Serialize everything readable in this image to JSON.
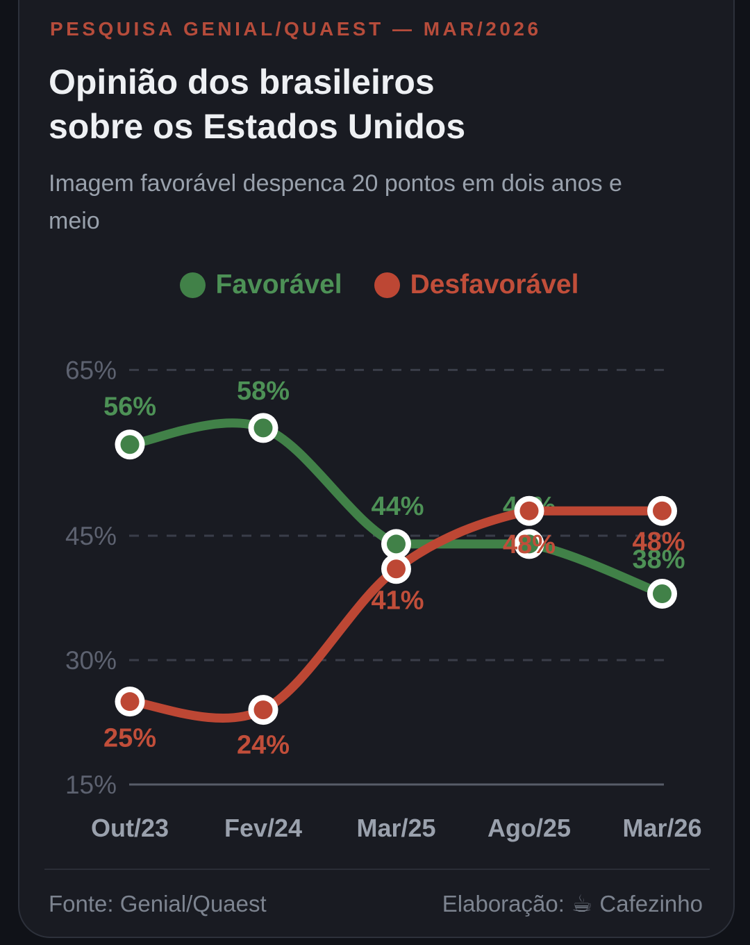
{
  "header": {
    "kicker": "PESQUISA GENIAL/QUAEST — MAR/2026",
    "title": "Opinião dos brasileiros\nsobre os Estados Unidos",
    "subtitle": "Imagem favorável despenca 20 pontos em dois anos e meio"
  },
  "legend": {
    "items": [
      {
        "label": "Favorável",
        "color": "#418148",
        "text_color": "#4d9156"
      },
      {
        "label": "Desfavorável",
        "color": "#bd4734",
        "text_color": "#c14e3a"
      }
    ]
  },
  "chart_data": {
    "type": "line",
    "categories": [
      "Out/23",
      "Fev/24",
      "Mar/25",
      "Ago/25",
      "Mar/26"
    ],
    "series": [
      {
        "name": "Favorável",
        "values": [
          56,
          58,
          44,
          44,
          38
        ],
        "color_line": "#418148",
        "color_label": "#4d9156",
        "label_position": "above"
      },
      {
        "name": "Desfavorável",
        "values": [
          25,
          24,
          41,
          48,
          48
        ],
        "color_line": "#bd4734",
        "color_label": "#c14e3a",
        "label_position": "below"
      }
    ],
    "yticks": [
      65,
      45,
      30,
      15
    ],
    "ylim": [
      15,
      67
    ],
    "grid": "horizontal-dashed",
    "baseline_tick": 15,
    "legend_position": "top-center",
    "point_marker": "white-ring-dot",
    "value_label_suffix": "%"
  },
  "footer": {
    "source": "Fonte: Genial/Quaest",
    "credit_label": "Elaboração:",
    "credit_icon": "☕",
    "credit_name": "Cafezinho"
  },
  "colors": {
    "page_bg": "#101218",
    "card_bg": "#191b22",
    "card_border": "#2d313b",
    "kicker": "#b64c3b",
    "title": "#eef0f3",
    "subtitle": "#99a1ac",
    "y_tick": "#5d6270",
    "x_tick": "#9aa1ad",
    "grid_dash": "#3a3e49",
    "axis_line": "#585d69",
    "footer_text": "#7d8490"
  }
}
